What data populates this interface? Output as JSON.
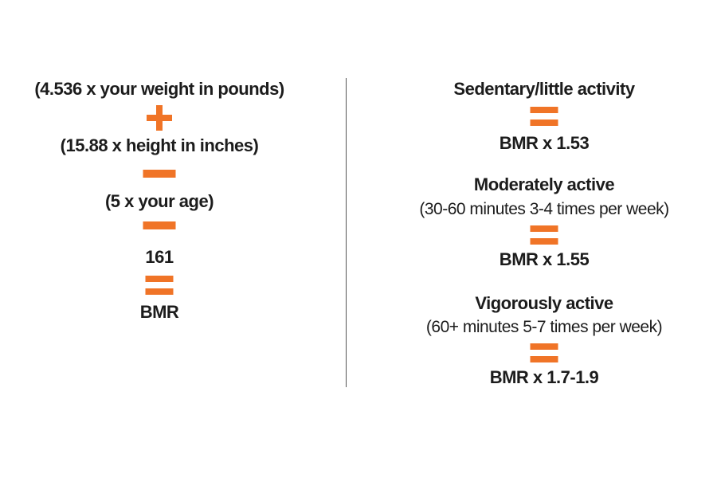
{
  "accent_color": "#f07427",
  "left": {
    "term1": "(4.536 x your weight in pounds)",
    "op1": "plus-icon",
    "term2": "(15.88 x height in inches)",
    "op2": "minus-icon",
    "term3": "(5 x your age)",
    "op3": "minus-icon",
    "term4": "161",
    "op4": "equals-icon",
    "result": "BMR"
  },
  "right": {
    "levels": [
      {
        "name": "Sedentary/little activity",
        "detail": "",
        "formula": "BMR x 1.53"
      },
      {
        "name": "Moderately active",
        "detail": "(30-60 minutes 3-4 times per week)",
        "formula": "BMR x 1.55"
      },
      {
        "name": "Vigorously active",
        "detail": "(60+ minutes 5-7 times per week)",
        "formula": "BMR x 1.7-1.9"
      }
    ]
  }
}
